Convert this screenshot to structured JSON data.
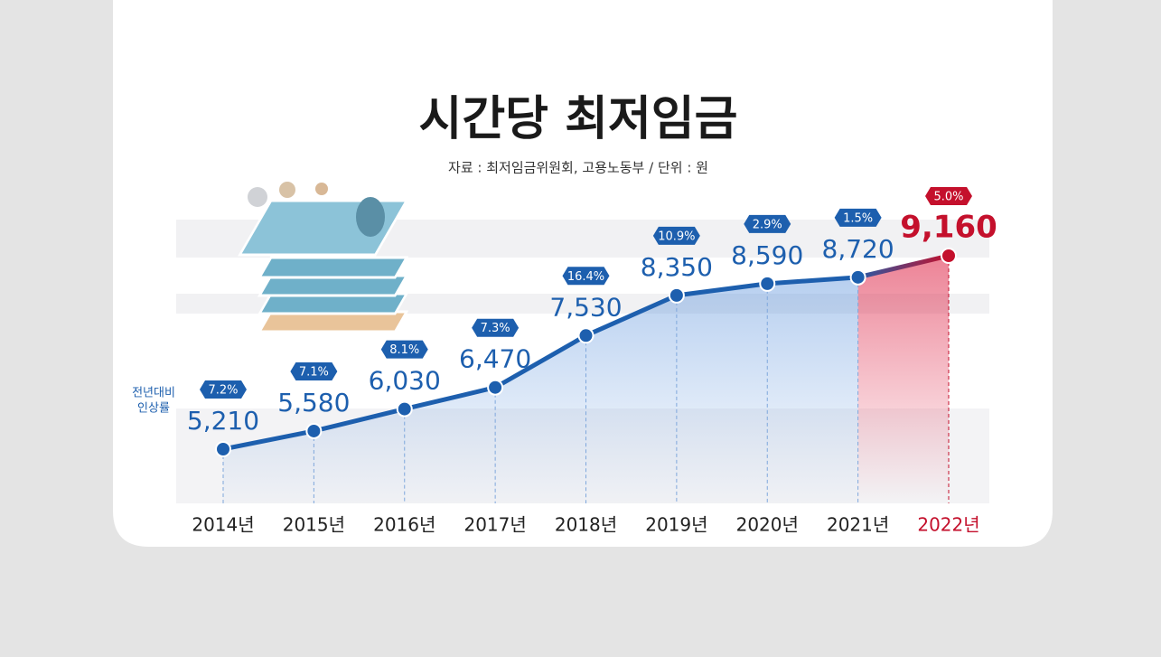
{
  "chart_data": {
    "type": "line",
    "title": "시간당 최저임금",
    "subtitle": "자료 : 최저임금위원회, 고용노동부 / 단위 : 원",
    "categories": [
      "2014년",
      "2015년",
      "2016년",
      "2017년",
      "2018년",
      "2019년",
      "2020년",
      "2021년",
      "2022년"
    ],
    "values": [
      5210,
      5580,
      6030,
      6470,
      7530,
      8350,
      8590,
      8720,
      9160
    ],
    "value_labels": [
      "5,210",
      "5,580",
      "6,030",
      "6,470",
      "7,530",
      "8,350",
      "8,590",
      "8,720",
      "9,160"
    ],
    "color": "#1d5fae",
    "highlight_color": "#c4102c",
    "rates": {
      "label": [
        "전년대비",
        "인상률"
      ],
      "values": [
        7.2,
        7.1,
        8.1,
        7.3,
        16.4,
        10.9,
        2.9,
        1.5,
        5.0
      ],
      "value_labels": [
        "7.2%",
        "7.1%",
        "8.1%",
        "7.3%",
        "16.4%",
        "10.9%",
        "2.9%",
        "1.5%",
        "5.0%"
      ]
    }
  }
}
